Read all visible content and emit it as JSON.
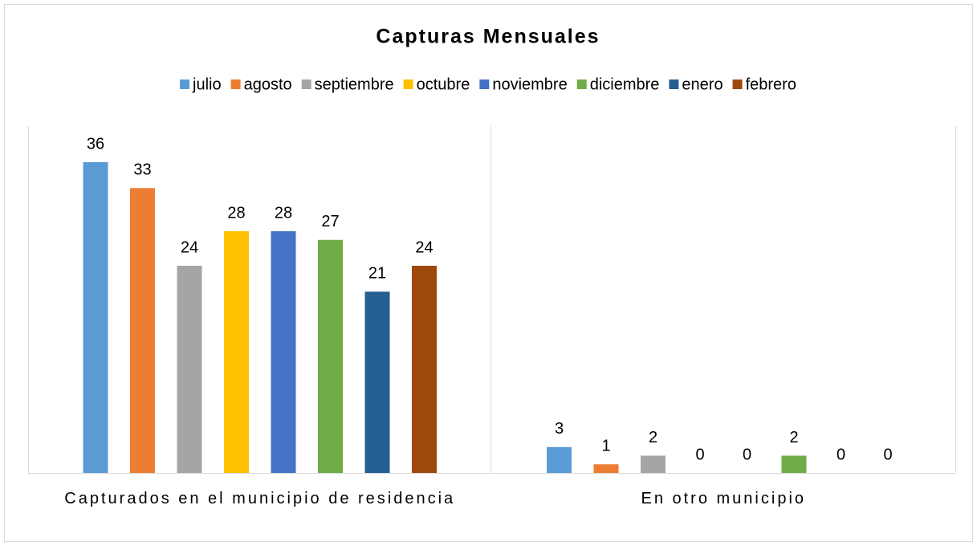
{
  "chart_data": {
    "type": "bar",
    "title": "Capturas Mensuales",
    "categories": [
      "Capturados en el municipio de residencia",
      "En otro municipio"
    ],
    "series": [
      {
        "name": "julio",
        "color": "#5b9bd5",
        "values": [
          36,
          3
        ]
      },
      {
        "name": "agosto",
        "color": "#ed7d31",
        "values": [
          33,
          1
        ]
      },
      {
        "name": "septiembre",
        "color": "#a5a5a5",
        "values": [
          24,
          2
        ]
      },
      {
        "name": "octubre",
        "color": "#ffc000",
        "values": [
          28,
          0
        ]
      },
      {
        "name": "noviembre",
        "color": "#4472c4",
        "values": [
          28,
          0
        ]
      },
      {
        "name": "diciembre",
        "color": "#70ad47",
        "values": [
          27,
          2
        ]
      },
      {
        "name": "enero",
        "color": "#255e91",
        "values": [
          21,
          0
        ]
      },
      {
        "name": "febrero",
        "color": "#9e480e",
        "values": [
          24,
          0
        ]
      }
    ],
    "legend": "top"
  }
}
